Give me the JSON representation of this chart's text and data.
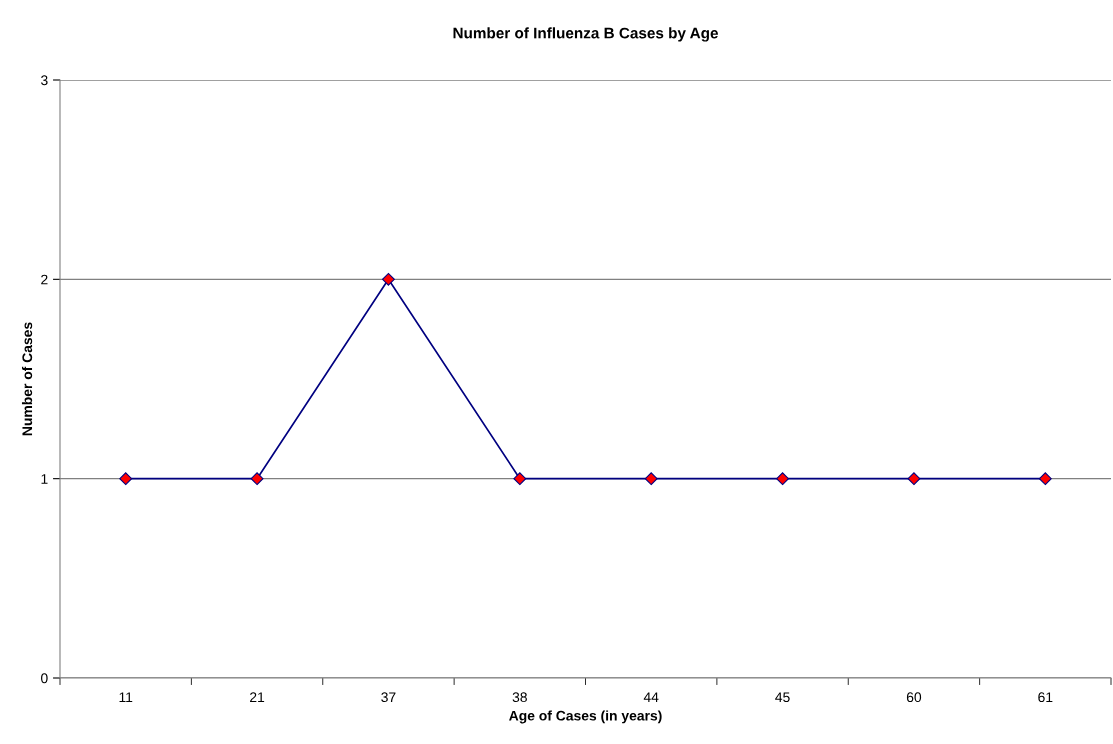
{
  "chart_data": {
    "type": "line",
    "title": "Number of Influenza B Cases by Age",
    "xlabel": "Age of Cases (in years)",
    "ylabel": "Number of Cases",
    "categories": [
      "11",
      "21",
      "37",
      "38",
      "44",
      "45",
      "60",
      "61"
    ],
    "series": [
      {
        "color": "#000080",
        "colors": [
          "#ff0000",
          "#ff0000",
          "#ff0000",
          "#ff0000",
          "#ff0000",
          "#ff0000",
          "#ff0000",
          "#ff0000"
        ],
        "values": [
          1,
          1,
          2,
          1,
          1,
          1,
          1,
          1
        ]
      }
    ],
    "ylim": [
      0,
      3
    ],
    "yticks": [
      0,
      1,
      2,
      3
    ],
    "grid": "y",
    "marker": "diamond",
    "line_style": "solid"
  }
}
